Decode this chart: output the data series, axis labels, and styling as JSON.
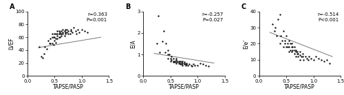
{
  "panel_A": {
    "label": "A",
    "xlabel": "TAPSE/PASP",
    "ylabel": "LVEF",
    "xlim": [
      0.0,
      1.5
    ],
    "ylim": [
      0,
      100
    ],
    "xticks": [
      0.0,
      0.5,
      1.0,
      1.5
    ],
    "yticks": [
      0,
      20,
      40,
      60,
      80,
      100
    ],
    "r_text": "r=0.363",
    "p_text": "P=0.001",
    "trend_x": [
      0.2,
      1.35
    ],
    "trend_y": [
      44,
      60
    ],
    "x_data": [
      0.22,
      0.25,
      0.28,
      0.3,
      0.32,
      0.35,
      0.38,
      0.4,
      0.42,
      0.42,
      0.45,
      0.45,
      0.45,
      0.48,
      0.48,
      0.5,
      0.5,
      0.5,
      0.52,
      0.52,
      0.52,
      0.55,
      0.55,
      0.55,
      0.55,
      0.58,
      0.58,
      0.58,
      0.6,
      0.6,
      0.6,
      0.62,
      0.62,
      0.62,
      0.65,
      0.65,
      0.65,
      0.68,
      0.68,
      0.7,
      0.7,
      0.7,
      0.72,
      0.72,
      0.75,
      0.75,
      0.78,
      0.8,
      0.8,
      0.82,
      0.85,
      0.88,
      0.9,
      0.92,
      0.95,
      1.0,
      1.05,
      1.1
    ],
    "y_data": [
      45,
      30,
      28,
      35,
      45,
      42,
      55,
      50,
      50,
      58,
      50,
      60,
      65,
      48,
      60,
      55,
      60,
      65,
      52,
      58,
      65,
      58,
      62,
      65,
      70,
      60,
      65,
      70,
      60,
      65,
      68,
      62,
      65,
      70,
      65,
      68,
      72,
      62,
      70,
      65,
      68,
      72,
      68,
      72,
      65,
      70,
      65,
      70,
      72,
      68,
      75,
      70,
      65,
      72,
      68,
      72,
      70,
      68
    ]
  },
  "panel_B": {
    "label": "B",
    "xlabel": "TAPSE/PASP",
    "ylabel": "E/A",
    "xlim": [
      0.0,
      1.5
    ],
    "ylim": [
      0,
      3
    ],
    "xticks": [
      0.0,
      0.5,
      1.0,
      1.5
    ],
    "yticks": [
      0,
      1,
      2,
      3
    ],
    "r_text": "r=-0.257",
    "p_text": "P=0.027",
    "trend_x": [
      0.2,
      1.3
    ],
    "trend_y": [
      1.05,
      0.6
    ],
    "x_data": [
      0.25,
      0.28,
      0.3,
      0.35,
      0.38,
      0.4,
      0.42,
      0.45,
      0.45,
      0.45,
      0.48,
      0.5,
      0.5,
      0.52,
      0.52,
      0.55,
      0.55,
      0.55,
      0.58,
      0.58,
      0.6,
      0.6,
      0.6,
      0.62,
      0.62,
      0.65,
      0.65,
      0.65,
      0.68,
      0.68,
      0.68,
      0.7,
      0.7,
      0.72,
      0.72,
      0.72,
      0.75,
      0.75,
      0.75,
      0.78,
      0.78,
      0.8,
      0.8,
      0.82,
      0.85,
      0.88,
      0.9,
      0.92,
      0.95,
      1.0,
      1.05,
      1.1,
      1.15,
      1.2
    ],
    "y_data": [
      1.5,
      2.8,
      1.1,
      1.6,
      2.1,
      1.1,
      1.5,
      1.0,
      0.8,
      1.2,
      1.0,
      0.7,
      0.8,
      0.75,
      0.9,
      0.65,
      0.7,
      0.8,
      0.65,
      0.7,
      0.6,
      0.75,
      0.8,
      0.65,
      0.7,
      0.6,
      0.65,
      0.7,
      0.55,
      0.6,
      0.7,
      0.55,
      0.65,
      0.5,
      0.6,
      0.7,
      0.55,
      0.6,
      0.65,
      0.5,
      0.55,
      0.55,
      0.6,
      0.5,
      0.55,
      0.5,
      0.45,
      0.55,
      0.5,
      0.5,
      0.6,
      0.55,
      0.5,
      0.45
    ]
  },
  "panel_C": {
    "label": "C",
    "xlabel": "TAPSE/PASP",
    "ylabel": "E/e'",
    "xlim": [
      0.0,
      1.5
    ],
    "ylim": [
      0,
      40
    ],
    "xticks": [
      0.0,
      0.5,
      1.0,
      1.5
    ],
    "yticks": [
      0,
      10,
      20,
      30,
      40
    ],
    "r_text": "r=-0.514",
    "p_text": "P<0.001",
    "trend_x": [
      0.2,
      1.35
    ],
    "trend_y": [
      27,
      12
    ],
    "x_data": [
      0.25,
      0.28,
      0.3,
      0.32,
      0.35,
      0.38,
      0.38,
      0.4,
      0.42,
      0.45,
      0.45,
      0.48,
      0.48,
      0.5,
      0.5,
      0.52,
      0.52,
      0.55,
      0.55,
      0.55,
      0.58,
      0.58,
      0.6,
      0.6,
      0.6,
      0.62,
      0.62,
      0.65,
      0.65,
      0.65,
      0.68,
      0.68,
      0.68,
      0.7,
      0.7,
      0.72,
      0.72,
      0.75,
      0.75,
      0.75,
      0.78,
      0.8,
      0.8,
      0.82,
      0.85,
      0.88,
      0.9,
      0.92,
      0.95,
      1.0,
      1.05,
      1.1,
      1.15,
      1.2,
      1.25,
      1.3
    ],
    "y_data": [
      32,
      28,
      30,
      25,
      35,
      20,
      38,
      25,
      22,
      28,
      18,
      22,
      20,
      18,
      25,
      20,
      18,
      22,
      15,
      18,
      16,
      20,
      18,
      15,
      20,
      16,
      18,
      14,
      16,
      18,
      15,
      12,
      16,
      14,
      15,
      12,
      14,
      13,
      15,
      10,
      12,
      14,
      12,
      10,
      12,
      11,
      10,
      12,
      11,
      10,
      12,
      11,
      10,
      9,
      10,
      8
    ]
  },
  "dot_color": "#111111",
  "line_color": "#777777",
  "dot_size": 3,
  "font_size": 5.5,
  "label_font_size": 7,
  "tick_font_size": 5,
  "annotation_font_size": 5
}
